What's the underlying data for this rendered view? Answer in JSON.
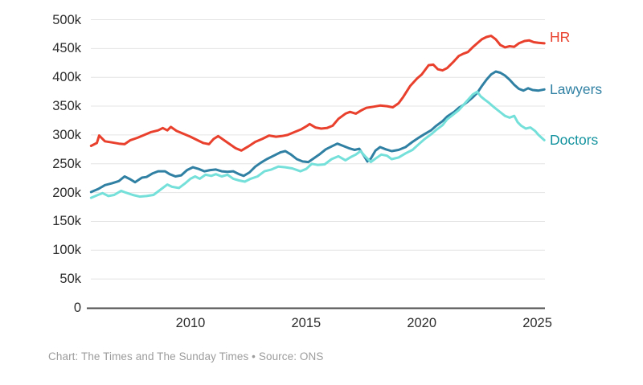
{
  "chart_data": {
    "type": "line",
    "title": "",
    "xlabel": "",
    "ylabel": "",
    "x_domain": [
      2005.7,
      2025.3
    ],
    "y_domain_thousands": [
      0,
      500
    ],
    "grid": true,
    "legend_position": "right of line ends",
    "x_ticks": [
      {
        "value": 2010,
        "label": "2010"
      },
      {
        "value": 2015,
        "label": "2015"
      },
      {
        "value": 2020,
        "label": "2020"
      },
      {
        "value": 2025,
        "label": "2025"
      }
    ],
    "y_ticks": [
      {
        "value": 0,
        "label": "0"
      },
      {
        "value": 50,
        "label": "50k"
      },
      {
        "value": 100,
        "label": "100k"
      },
      {
        "value": 150,
        "label": "150k"
      },
      {
        "value": 200,
        "label": "200k"
      },
      {
        "value": 250,
        "label": "250k"
      },
      {
        "value": 300,
        "label": "300k"
      },
      {
        "value": 350,
        "label": "350k"
      },
      {
        "value": 400,
        "label": "400k"
      },
      {
        "value": 450,
        "label": "450k"
      },
      {
        "value": 500,
        "label": "500k"
      }
    ],
    "colors": {
      "grid": "#e4e4e4",
      "axis": "#4c4c4c",
      "tick_text": "#2d2d2d",
      "footer_text": "#9c9c9c"
    },
    "series": [
      {
        "name": "HR",
        "color": "#e8402c",
        "label_color": "#e8402c",
        "label_dy": -7,
        "points_year_thousands": [
          [
            2005.7,
            281
          ],
          [
            2005.95,
            286
          ],
          [
            2006.05,
            299
          ],
          [
            2006.3,
            289
          ],
          [
            2006.6,
            287
          ],
          [
            2006.9,
            285
          ],
          [
            2007.15,
            284
          ],
          [
            2007.4,
            291
          ],
          [
            2007.7,
            295
          ],
          [
            2008,
            300
          ],
          [
            2008.3,
            305
          ],
          [
            2008.6,
            308
          ],
          [
            2008.8,
            312
          ],
          [
            2009,
            308
          ],
          [
            2009.15,
            314
          ],
          [
            2009.4,
            307
          ],
          [
            2009.7,
            302
          ],
          [
            2010,
            297
          ],
          [
            2010.3,
            291
          ],
          [
            2010.55,
            286
          ],
          [
            2010.8,
            284
          ],
          [
            2011,
            293
          ],
          [
            2011.2,
            298
          ],
          [
            2011.45,
            291
          ],
          [
            2011.7,
            284
          ],
          [
            2011.95,
            277
          ],
          [
            2012.2,
            273
          ],
          [
            2012.5,
            280
          ],
          [
            2012.8,
            288
          ],
          [
            2013.1,
            293
          ],
          [
            2013.4,
            299
          ],
          [
            2013.7,
            297
          ],
          [
            2013.95,
            298
          ],
          [
            2014.2,
            300
          ],
          [
            2014.5,
            305
          ],
          [
            2014.8,
            310
          ],
          [
            2015.05,
            316
          ],
          [
            2015.15,
            319
          ],
          [
            2015.4,
            313
          ],
          [
            2015.65,
            311
          ],
          [
            2015.9,
            312
          ],
          [
            2016.15,
            316
          ],
          [
            2016.4,
            328
          ],
          [
            2016.7,
            337
          ],
          [
            2016.9,
            340
          ],
          [
            2017.15,
            337
          ],
          [
            2017.4,
            343
          ],
          [
            2017.6,
            347
          ],
          [
            2017.9,
            349
          ],
          [
            2018.2,
            351
          ],
          [
            2018.5,
            350
          ],
          [
            2018.75,
            348
          ],
          [
            2019,
            355
          ],
          [
            2019.2,
            366
          ],
          [
            2019.5,
            385
          ],
          [
            2019.8,
            398
          ],
          [
            2020,
            405
          ],
          [
            2020.3,
            421
          ],
          [
            2020.5,
            422
          ],
          [
            2020.7,
            414
          ],
          [
            2020.9,
            412
          ],
          [
            2021.1,
            416
          ],
          [
            2021.35,
            426
          ],
          [
            2021.6,
            437
          ],
          [
            2021.8,
            441
          ],
          [
            2022,
            444
          ],
          [
            2022.2,
            452
          ],
          [
            2022.4,
            459
          ],
          [
            2022.6,
            466
          ],
          [
            2022.8,
            470
          ],
          [
            2023,
            472
          ],
          [
            2023.2,
            466
          ],
          [
            2023.4,
            456
          ],
          [
            2023.6,
            452
          ],
          [
            2023.8,
            454
          ],
          [
            2024,
            453
          ],
          [
            2024.2,
            459
          ],
          [
            2024.45,
            463
          ],
          [
            2024.65,
            464
          ],
          [
            2024.85,
            461
          ],
          [
            2025.05,
            460
          ],
          [
            2025.3,
            459
          ]
        ]
      },
      {
        "name": "Lawyers",
        "color": "#2f80a3",
        "label_color": "#2f80a3",
        "label_dy": 1,
        "points_year_thousands": [
          [
            2005.7,
            201
          ],
          [
            2006,
            206
          ],
          [
            2006.3,
            213
          ],
          [
            2006.6,
            216
          ],
          [
            2006.9,
            220
          ],
          [
            2007.15,
            228
          ],
          [
            2007.4,
            223
          ],
          [
            2007.6,
            218
          ],
          [
            2007.9,
            226
          ],
          [
            2008.1,
            227
          ],
          [
            2008.35,
            233
          ],
          [
            2008.6,
            237
          ],
          [
            2008.9,
            237
          ],
          [
            2009.1,
            232
          ],
          [
            2009.35,
            228
          ],
          [
            2009.6,
            230
          ],
          [
            2009.85,
            239
          ],
          [
            2010.1,
            244
          ],
          [
            2010.35,
            241
          ],
          [
            2010.6,
            237
          ],
          [
            2010.85,
            239
          ],
          [
            2011.1,
            240
          ],
          [
            2011.35,
            237
          ],
          [
            2011.6,
            236
          ],
          [
            2011.85,
            237
          ],
          [
            2012.1,
            232
          ],
          [
            2012.3,
            229
          ],
          [
            2012.55,
            235
          ],
          [
            2012.8,
            245
          ],
          [
            2013.05,
            252
          ],
          [
            2013.3,
            258
          ],
          [
            2013.6,
            264
          ],
          [
            2013.9,
            270
          ],
          [
            2014.1,
            272
          ],
          [
            2014.35,
            266
          ],
          [
            2014.6,
            258
          ],
          [
            2014.85,
            254
          ],
          [
            2015.1,
            253
          ],
          [
            2015.35,
            260
          ],
          [
            2015.6,
            267
          ],
          [
            2015.85,
            275
          ],
          [
            2016.1,
            280
          ],
          [
            2016.35,
            285
          ],
          [
            2016.6,
            281
          ],
          [
            2016.85,
            277
          ],
          [
            2017.1,
            274
          ],
          [
            2017.3,
            276
          ],
          [
            2017.5,
            264
          ],
          [
            2017.65,
            254
          ],
          [
            2017.8,
            259
          ],
          [
            2018,
            273
          ],
          [
            2018.2,
            279
          ],
          [
            2018.45,
            275
          ],
          [
            2018.7,
            272
          ],
          [
            2019,
            274
          ],
          [
            2019.3,
            279
          ],
          [
            2019.6,
            288
          ],
          [
            2019.9,
            296
          ],
          [
            2020.1,
            301
          ],
          [
            2020.4,
            308
          ],
          [
            2020.6,
            315
          ],
          [
            2020.9,
            324
          ],
          [
            2021.1,
            332
          ],
          [
            2021.4,
            340
          ],
          [
            2021.6,
            347
          ],
          [
            2021.8,
            352
          ],
          [
            2022,
            358
          ],
          [
            2022.2,
            365
          ],
          [
            2022.4,
            373
          ],
          [
            2022.6,
            385
          ],
          [
            2022.8,
            396
          ],
          [
            2023,
            405
          ],
          [
            2023.2,
            410
          ],
          [
            2023.4,
            408
          ],
          [
            2023.6,
            403
          ],
          [
            2023.8,
            396
          ],
          [
            2024,
            387
          ],
          [
            2024.2,
            380
          ],
          [
            2024.4,
            377
          ],
          [
            2024.6,
            381
          ],
          [
            2024.8,
            378
          ],
          [
            2025.05,
            377
          ],
          [
            2025.3,
            379
          ]
        ]
      },
      {
        "name": "Doctors",
        "color": "#74e0d9",
        "label_color": "#12929e",
        "label_dy": 1,
        "points_year_thousands": [
          [
            2005.7,
            191
          ],
          [
            2006,
            196
          ],
          [
            2006.2,
            199
          ],
          [
            2006.45,
            194
          ],
          [
            2006.7,
            196
          ],
          [
            2007,
            203
          ],
          [
            2007.2,
            200
          ],
          [
            2007.5,
            196
          ],
          [
            2007.8,
            193
          ],
          [
            2008.1,
            194
          ],
          [
            2008.4,
            196
          ],
          [
            2008.7,
            205
          ],
          [
            2009,
            214
          ],
          [
            2009.2,
            210
          ],
          [
            2009.5,
            208
          ],
          [
            2009.8,
            217
          ],
          [
            2010,
            224
          ],
          [
            2010.2,
            228
          ],
          [
            2010.4,
            224
          ],
          [
            2010.65,
            231
          ],
          [
            2010.9,
            229
          ],
          [
            2011.1,
            232
          ],
          [
            2011.35,
            228
          ],
          [
            2011.6,
            231
          ],
          [
            2011.85,
            224
          ],
          [
            2012.1,
            221
          ],
          [
            2012.35,
            219
          ],
          [
            2012.6,
            224
          ],
          [
            2012.9,
            228
          ],
          [
            2013.2,
            237
          ],
          [
            2013.5,
            240
          ],
          [
            2013.8,
            245
          ],
          [
            2014.1,
            244
          ],
          [
            2014.4,
            242
          ],
          [
            2014.75,
            237
          ],
          [
            2015,
            241
          ],
          [
            2015.25,
            250
          ],
          [
            2015.5,
            248
          ],
          [
            2015.8,
            249
          ],
          [
            2016.1,
            258
          ],
          [
            2016.4,
            263
          ],
          [
            2016.7,
            256
          ],
          [
            2016.95,
            262
          ],
          [
            2017.15,
            266
          ],
          [
            2017.35,
            272
          ],
          [
            2017.55,
            263
          ],
          [
            2017.8,
            253
          ],
          [
            2018,
            259
          ],
          [
            2018.25,
            266
          ],
          [
            2018.5,
            264
          ],
          [
            2018.7,
            258
          ],
          [
            2019,
            261
          ],
          [
            2019.3,
            268
          ],
          [
            2019.6,
            274
          ],
          [
            2019.9,
            285
          ],
          [
            2020.1,
            292
          ],
          [
            2020.4,
            301
          ],
          [
            2020.6,
            308
          ],
          [
            2020.9,
            317
          ],
          [
            2021.1,
            327
          ],
          [
            2021.35,
            335
          ],
          [
            2021.6,
            343
          ],
          [
            2021.8,
            352
          ],
          [
            2022,
            361
          ],
          [
            2022.2,
            370
          ],
          [
            2022.4,
            375
          ],
          [
            2022.55,
            367
          ],
          [
            2022.7,
            362
          ],
          [
            2022.9,
            356
          ],
          [
            2023.1,
            349
          ],
          [
            2023.35,
            341
          ],
          [
            2023.6,
            333
          ],
          [
            2023.8,
            330
          ],
          [
            2024,
            333
          ],
          [
            2024.15,
            322
          ],
          [
            2024.3,
            316
          ],
          [
            2024.5,
            311
          ],
          [
            2024.7,
            313
          ],
          [
            2024.9,
            307
          ],
          [
            2025.05,
            300
          ],
          [
            2025.3,
            291
          ]
        ]
      }
    ]
  },
  "footer": {
    "text": "Chart: The Times and The Sunday Times • Source: ONS"
  }
}
